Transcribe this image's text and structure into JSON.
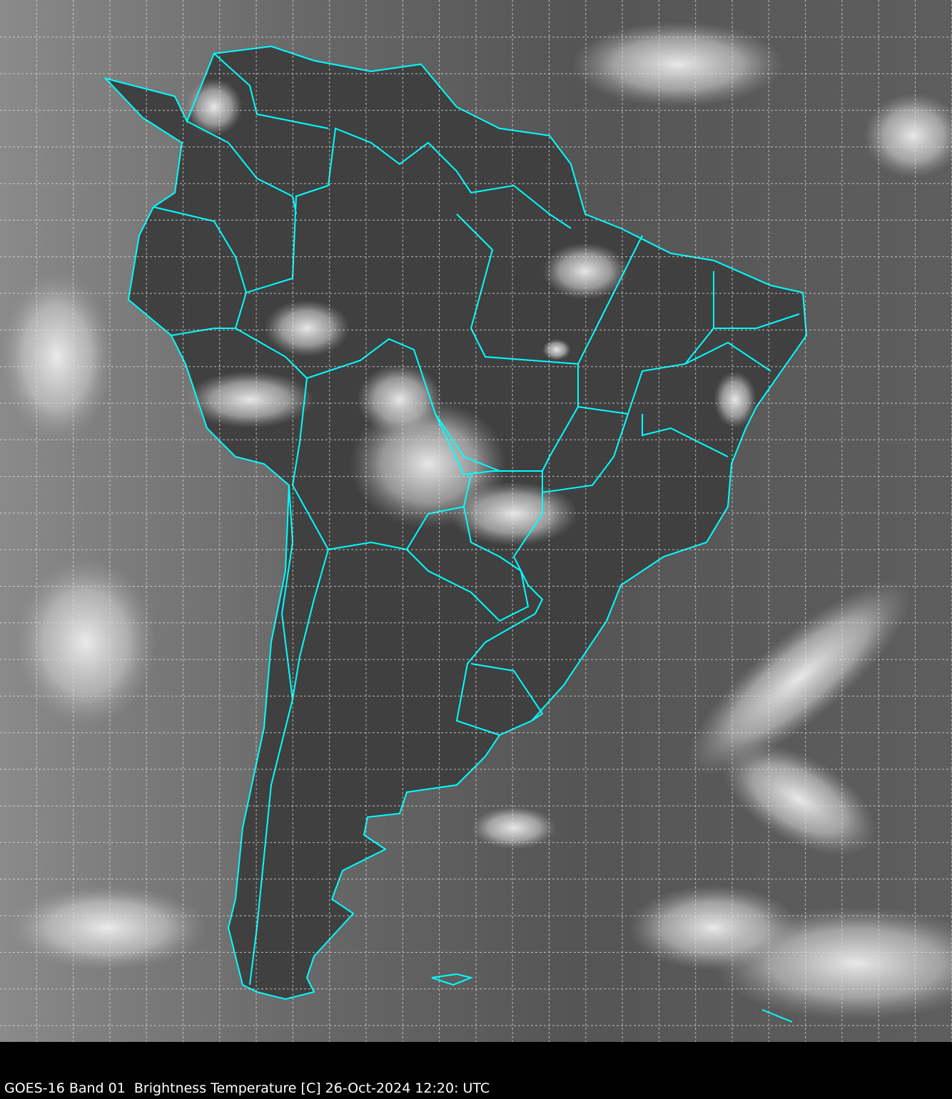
{
  "caption": "GOES-16 Band 01  Brightness Temperature [C] 26-Oct-2024 12:20: UTC",
  "colors": {
    "border": "#00ffff",
    "grid": "#e0e0e0",
    "background": "#000000",
    "ocean": "#5a5a5a",
    "land": "#3c3c3c",
    "cloud": "#e8e8e8"
  }
}
